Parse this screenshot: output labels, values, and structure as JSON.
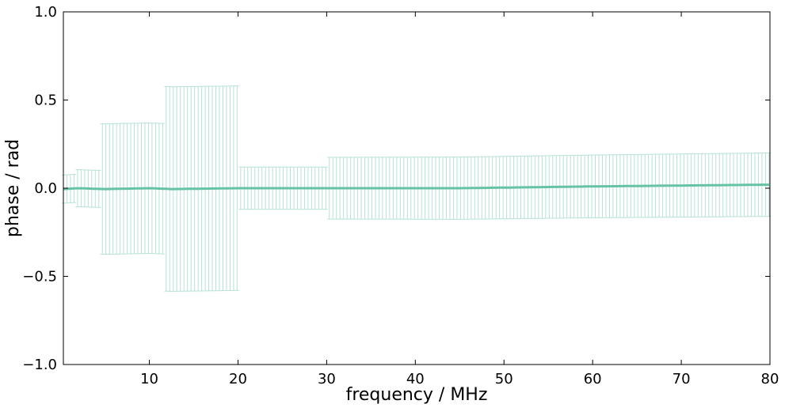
{
  "chart_data": {
    "type": "line",
    "title": "",
    "xlabel": "frequency / MHz",
    "ylabel": "phase / rad",
    "xlim": [
      0.3,
      80
    ],
    "ylim": [
      -1.0,
      1.0
    ],
    "x_ticks": [
      10,
      20,
      30,
      40,
      50,
      60,
      70,
      80
    ],
    "x_tick_labels": [
      "10",
      "20",
      "30",
      "40",
      "50",
      "60",
      "70",
      "80"
    ],
    "y_ticks": [
      -1.0,
      -0.5,
      0.0,
      0.5,
      1.0
    ],
    "y_tick_labels": [
      "−1.0",
      "−0.5",
      "0.0",
      "0.5",
      "1.0"
    ],
    "grid": false,
    "legend": "none",
    "series_color": "#66c2a5",
    "errorbar_color": "#b7e2d7",
    "error_segments": [
      {
        "x_start": 0.3,
        "x_end": 1.6,
        "err": 0.08
      },
      {
        "x_start": 1.6,
        "x_end": 4.6,
        "err": 0.105
      },
      {
        "x_start": 4.6,
        "x_end": 11.7,
        "err": 0.37
      },
      {
        "x_start": 11.7,
        "x_end": 20.0,
        "err": 0.58
      },
      {
        "x_start": 20.0,
        "x_end": 30.0,
        "err": 0.12
      },
      {
        "x_start": 30.0,
        "x_end": 80.0,
        "err_start": 0.175,
        "err_end": 0.18
      }
    ],
    "phase_trend": [
      {
        "x": 0.3,
        "y": -0.005
      },
      {
        "x": 2.0,
        "y": 0.0
      },
      {
        "x": 5.0,
        "y": -0.005
      },
      {
        "x": 10.0,
        "y": 0.0
      },
      {
        "x": 12.5,
        "y": -0.005
      },
      {
        "x": 20.0,
        "y": 0.0
      },
      {
        "x": 30.0,
        "y": 0.0
      },
      {
        "x": 45.0,
        "y": 0.0
      },
      {
        "x": 60.0,
        "y": 0.01
      },
      {
        "x": 80.0,
        "y": 0.02
      }
    ],
    "point_spacing_mhz": 0.4
  }
}
